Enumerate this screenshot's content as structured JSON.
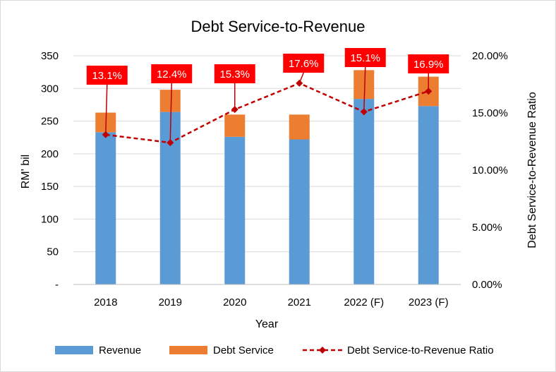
{
  "chart_data": {
    "type": "bar",
    "stacked": true,
    "title": "Debt Service-to-Revenue",
    "xlabel": "Year",
    "ylabel": "RM' bil",
    "y2label": "Debt Service-to-Revenue  Ratio",
    "categories": [
      "2018",
      "2019",
      "2020",
      "2021",
      "2022 (F)",
      "2023 (F)"
    ],
    "ylim": [
      0,
      350
    ],
    "yticks": [
      "-",
      "50",
      "100",
      "150",
      "200",
      "250",
      "300",
      "350"
    ],
    "y2lim": [
      0,
      0.2
    ],
    "y2ticks": [
      "0.00%",
      "5.00%",
      "10.00%",
      "15.00%",
      "20.00%"
    ],
    "grid": true,
    "legend_position": "bottom",
    "series": [
      {
        "name": "Revenue",
        "type": "bar",
        "axis": "left",
        "color": "#5b9bd5",
        "values": [
          233,
          264,
          226,
          222,
          284,
          273
        ]
      },
      {
        "name": "Debt Service",
        "type": "bar",
        "axis": "left",
        "color": "#ed7d31",
        "values": [
          30,
          34,
          34,
          38,
          44,
          45
        ]
      },
      {
        "name": "Debt Service-to-Revenue Ratio",
        "type": "line",
        "axis": "right",
        "color": "#c00000",
        "values": [
          0.131,
          0.124,
          0.153,
          0.176,
          0.151,
          0.169
        ],
        "labels": [
          "13.1%",
          "12.4%",
          "15.3%",
          "17.6%",
          "15.1%",
          "16.9%"
        ]
      }
    ]
  }
}
